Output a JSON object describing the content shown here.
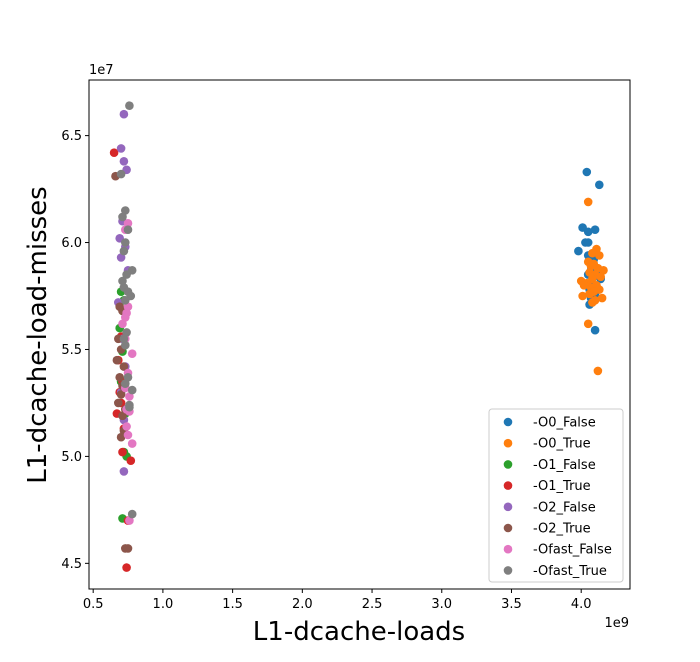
{
  "chart_data": {
    "type": "scatter",
    "xlabel": "L1-dcache-loads",
    "ylabel": "L1-dcache-load-misses",
    "x_offset_label": "1e9",
    "y_offset_label": "1e7",
    "xlim": [
      0.47,
      4.35
    ],
    "ylim": [
      4.38,
      6.76
    ],
    "x_ticks": [
      "0.5",
      "1.0",
      "1.5",
      "2.0",
      "2.5",
      "3.0",
      "3.5",
      "4.0"
    ],
    "y_ticks": [
      "4.5",
      "5.0",
      "5.5",
      "6.0",
      "6.5"
    ],
    "grid": false,
    "legend_position": "lower-right",
    "series": [
      {
        "name": "-O0_False",
        "color": "#1f77b4",
        "points": [
          [
            4.04,
            6.33
          ],
          [
            4.13,
            6.27
          ],
          [
            4.01,
            6.07
          ],
          [
            4.1,
            6.06
          ],
          [
            4.05,
            6.05
          ],
          [
            4.03,
            6.0
          ],
          [
            4.05,
            6.0
          ],
          [
            3.98,
            5.96
          ],
          [
            4.05,
            5.94
          ],
          [
            4.09,
            5.92
          ],
          [
            4.07,
            5.87
          ],
          [
            4.12,
            5.85
          ],
          [
            4.05,
            5.85
          ],
          [
            4.14,
            5.83
          ],
          [
            4.09,
            5.8
          ],
          [
            4.06,
            5.78
          ],
          [
            4.1,
            5.76
          ],
          [
            4.07,
            5.74
          ],
          [
            4.06,
            5.71
          ],
          [
            4.1,
            5.59
          ]
        ]
      },
      {
        "name": "-O0_True",
        "color": "#ff7f0e",
        "points": [
          [
            4.05,
            6.19
          ],
          [
            4.11,
            5.97
          ],
          [
            4.08,
            5.95
          ],
          [
            4.13,
            5.94
          ],
          [
            4.05,
            5.91
          ],
          [
            4.09,
            5.9
          ],
          [
            4.07,
            5.89
          ],
          [
            4.12,
            5.88
          ],
          [
            4.16,
            5.87
          ],
          [
            4.06,
            5.86
          ],
          [
            4.1,
            5.85
          ],
          [
            4.14,
            5.84
          ],
          [
            4.08,
            5.83
          ],
          [
            4.0,
            5.82
          ],
          [
            4.04,
            5.81
          ],
          [
            4.11,
            5.8
          ],
          [
            4.02,
            5.8
          ],
          [
            4.07,
            5.79
          ],
          [
            4.13,
            5.78
          ],
          [
            4.09,
            5.77
          ],
          [
            4.06,
            5.76
          ],
          [
            4.01,
            5.75
          ],
          [
            4.15,
            5.74
          ],
          [
            4.1,
            5.73
          ],
          [
            4.08,
            5.72
          ],
          [
            4.05,
            5.62
          ],
          [
            4.12,
            5.4
          ]
        ]
      },
      {
        "name": "-O1_False",
        "color": "#2ca02c",
        "points": [
          [
            0.7,
            5.77
          ],
          [
            0.72,
            5.73
          ],
          [
            0.69,
            5.6
          ],
          [
            0.71,
            5.49
          ],
          [
            0.7,
            5.35
          ],
          [
            0.73,
            5.2
          ],
          [
            0.72,
            5.02
          ],
          [
            0.74,
            5.0
          ],
          [
            0.71,
            4.71
          ]
        ]
      },
      {
        "name": "-O1_True",
        "color": "#d62728",
        "points": [
          [
            0.65,
            6.42
          ],
          [
            0.7,
            5.56
          ],
          [
            0.68,
            5.45
          ],
          [
            0.71,
            5.35
          ],
          [
            0.69,
            5.3
          ],
          [
            0.7,
            5.25
          ],
          [
            0.67,
            5.2
          ],
          [
            0.72,
            5.13
          ],
          [
            0.71,
            5.02
          ],
          [
            0.77,
            4.98
          ],
          [
            0.75,
            4.7
          ],
          [
            0.74,
            4.48
          ]
        ]
      },
      {
        "name": "-O2_False",
        "color": "#9467bd",
        "points": [
          [
            0.7,
            6.44
          ],
          [
            0.72,
            6.6
          ],
          [
            0.72,
            6.38
          ],
          [
            0.74,
            6.34
          ],
          [
            0.71,
            6.1
          ],
          [
            0.69,
            6.02
          ],
          [
            0.73,
            5.98
          ],
          [
            0.7,
            5.93
          ],
          [
            0.75,
            5.87
          ],
          [
            0.68,
            5.72
          ],
          [
            0.71,
            5.55
          ],
          [
            0.73,
            5.42
          ],
          [
            0.7,
            5.3
          ],
          [
            0.72,
            5.17
          ],
          [
            0.72,
            4.93
          ]
        ]
      },
      {
        "name": "-O2_True",
        "color": "#8c564b",
        "points": [
          [
            0.66,
            6.31
          ],
          [
            0.69,
            5.7
          ],
          [
            0.71,
            5.68
          ],
          [
            0.68,
            5.55
          ],
          [
            0.7,
            5.5
          ],
          [
            0.67,
            5.45
          ],
          [
            0.72,
            5.42
          ],
          [
            0.69,
            5.37
          ],
          [
            0.71,
            5.33
          ],
          [
            0.7,
            5.29
          ],
          [
            0.68,
            5.25
          ],
          [
            0.73,
            5.22
          ],
          [
            0.71,
            5.19
          ],
          [
            0.72,
            5.12
          ],
          [
            0.7,
            5.09
          ],
          [
            0.73,
            4.57
          ],
          [
            0.75,
            4.57
          ]
        ]
      },
      {
        "name": "-Ofast_False",
        "color": "#e377c2",
        "points": [
          [
            0.75,
            6.09
          ],
          [
            0.73,
            6.06
          ],
          [
            0.75,
            5.7
          ],
          [
            0.74,
            5.67
          ],
          [
            0.73,
            5.65
          ],
          [
            0.71,
            5.62
          ],
          [
            0.73,
            5.55
          ],
          [
            0.78,
            5.48
          ],
          [
            0.75,
            5.39
          ],
          [
            0.73,
            5.32
          ],
          [
            0.76,
            5.28
          ],
          [
            0.74,
            5.22
          ],
          [
            0.76,
            5.21
          ],
          [
            0.74,
            5.14
          ],
          [
            0.75,
            5.1
          ],
          [
            0.78,
            5.06
          ],
          [
            0.76,
            4.7
          ]
        ]
      },
      {
        "name": "-Ofast_True",
        "color": "#7f7f7f",
        "points": [
          [
            0.76,
            6.64
          ],
          [
            0.7,
            6.32
          ],
          [
            0.73,
            6.15
          ],
          [
            0.71,
            6.12
          ],
          [
            0.75,
            6.06
          ],
          [
            0.73,
            6.0
          ],
          [
            0.72,
            5.96
          ],
          [
            0.78,
            5.87
          ],
          [
            0.74,
            5.85
          ],
          [
            0.71,
            5.82
          ],
          [
            0.72,
            5.79
          ],
          [
            0.75,
            5.77
          ],
          [
            0.77,
            5.75
          ],
          [
            0.73,
            5.73
          ],
          [
            0.74,
            5.58
          ],
          [
            0.72,
            5.55
          ],
          [
            0.73,
            5.52
          ],
          [
            0.75,
            5.37
          ],
          [
            0.73,
            5.34
          ],
          [
            0.78,
            5.31
          ],
          [
            0.76,
            5.24
          ],
          [
            0.76,
            5.23
          ],
          [
            0.78,
            4.73
          ]
        ]
      }
    ]
  }
}
